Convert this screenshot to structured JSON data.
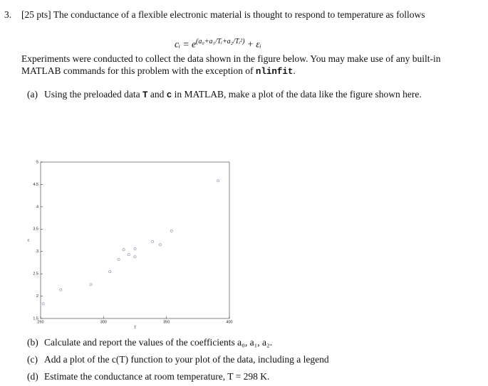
{
  "document": {
    "problem_number": "3.",
    "intro": "[25 pts] The conductance of a flexible electronic material is thought to respond to temperature as follows",
    "equation": {
      "lhs": "cᵢ = e",
      "exponent": "(a₀+a₁/Tᵢ+a₂/Tᵢ²)",
      "rhs": "+ εᵢ"
    },
    "paragraph": {
      "text": "Experiments were conducted to collect the data shown in the figure below. You may make use of any built-in MATLAB commands for this problem with the exception of ",
      "code": "nlinfit",
      "end": "."
    },
    "parts": [
      {
        "label": "(a)",
        "segments": [
          "Using the preloaded data ",
          "T",
          " and ",
          "c",
          " in MATLAB, make a plot of the data like the figure shown here."
        ]
      },
      {
        "label": "(b)",
        "segments": [
          "Calculate and report the values of the coefficients a₀, a₁, a₂."
        ]
      },
      {
        "label": "(c)",
        "segments": [
          "Add a plot of the c(T) function to your plot of the data, including a legend"
        ]
      },
      {
        "label": "(d)",
        "segments": [
          "Estimate the conductance at room temperature, T = 298 K."
        ]
      }
    ]
  },
  "chart_data": {
    "type": "scatter",
    "xlabel": "T",
    "ylabel": "c",
    "x": [
      252,
      266,
      290,
      305,
      312,
      316,
      320,
      325,
      325,
      339,
      345,
      354,
      391
    ],
    "series": [
      {
        "name": null,
        "color": "#7a8aa8",
        "values": [
          1.83,
          2.14,
          2.26,
          2.55,
          2.82,
          3.04,
          2.93,
          3.06,
          2.88,
          3.22,
          3.15,
          3.46,
          4.58
        ]
      }
    ],
    "xlim": [
      250,
      400
    ],
    "xticks": [
      250,
      300,
      350,
      400
    ],
    "ylim": [
      1.5,
      5
    ],
    "yticks": [
      1.5,
      2,
      2.5,
      3,
      3.5,
      4,
      4.5,
      5
    ]
  }
}
